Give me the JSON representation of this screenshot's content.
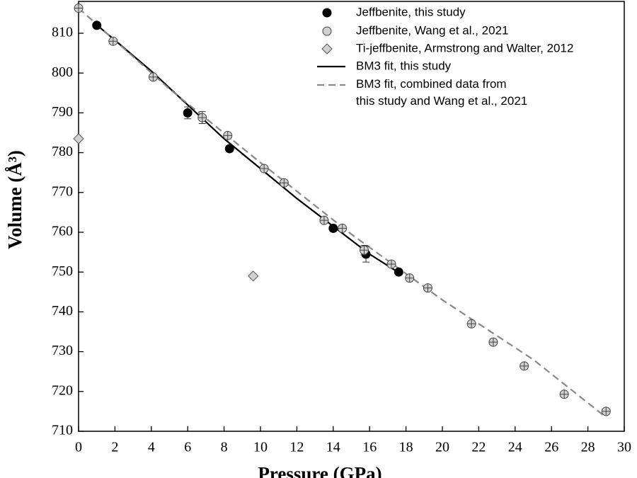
{
  "chart_data": {
    "type": "scatter",
    "x_label": "Pressure (GPa)",
    "y_label": "Volume (Å³)",
    "xlim": [
      0,
      30
    ],
    "ylim": [
      710,
      818
    ],
    "xticks": [
      0,
      2,
      4,
      6,
      8,
      10,
      12,
      14,
      16,
      18,
      20,
      22,
      24,
      26,
      28,
      30
    ],
    "yticks": [
      710,
      720,
      730,
      740,
      750,
      760,
      770,
      780,
      790,
      800,
      810
    ],
    "series": [
      {
        "name": "Jeffbenite, this study",
        "type": "scatter",
        "marker": "filled-circle",
        "color": "#000000",
        "x": [
          1.0,
          6.0,
          8.3,
          14.0,
          15.8,
          17.6
        ],
        "values": [
          812,
          790,
          781,
          761,
          754.5,
          750
        ],
        "errors": [
          null,
          1.5,
          null,
          0.8,
          2,
          null
        ]
      },
      {
        "name": "Jeffbenite, Wang et al., 2021",
        "type": "scatter",
        "marker": "crossed-circle",
        "color": "#d0d0d0",
        "x": [
          0,
          1.9,
          4.1,
          6.8,
          8.2,
          10.2,
          11.3,
          13.5,
          14.5,
          15.7,
          17.2,
          18.2,
          19.2,
          21.6,
          22.8,
          24.5,
          26.7,
          29.0
        ],
        "values": [
          816.3,
          808,
          799,
          788.8,
          784.3,
          776,
          772.4,
          763,
          761,
          755.5,
          752,
          748.5,
          746,
          737,
          732.4,
          726.4,
          719.3,
          715
        ],
        "errors": [
          null,
          null,
          null,
          1.5,
          null,
          null,
          null,
          null,
          null,
          1.2,
          null,
          null,
          null,
          null,
          null,
          null,
          null,
          null
        ]
      },
      {
        "name": "Ti-jeffbenite, Armstrong and Walter, 2012",
        "type": "scatter",
        "marker": "diamond",
        "color": "#d0d0d0",
        "x": [
          0,
          9.6
        ],
        "values": [
          783.5,
          749
        ]
      },
      {
        "name": "BM3 fit, this study",
        "type": "line",
        "dash": false,
        "color": "#000000",
        "x": [
          0.9,
          4,
          8,
          12,
          16,
          17.8
        ],
        "values": [
          812.5,
          800.5,
          783.5,
          768.5,
          754.5,
          749.3
        ]
      },
      {
        "name": "BM3 fit, combined data from\nthis study and Wang et al., 2021",
        "type": "line",
        "dash": true,
        "color": "#888888",
        "x": [
          0,
          5,
          10,
          15,
          20,
          25,
          29
        ],
        "values": [
          816.3,
          796,
          777.5,
          759.5,
          743,
          728,
          713.5
        ]
      }
    ]
  }
}
